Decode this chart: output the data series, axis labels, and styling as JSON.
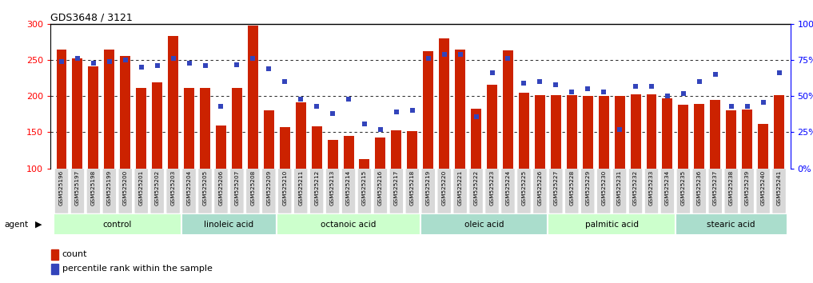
{
  "title": "GDS3648 / 3121",
  "samples": [
    "GSM525196",
    "GSM525197",
    "GSM525198",
    "GSM525199",
    "GSM525200",
    "GSM525201",
    "GSM525202",
    "GSM525203",
    "GSM525204",
    "GSM525205",
    "GSM525206",
    "GSM525207",
    "GSM525208",
    "GSM525209",
    "GSM525210",
    "GSM525211",
    "GSM525212",
    "GSM525213",
    "GSM525214",
    "GSM525215",
    "GSM525216",
    "GSM525217",
    "GSM525218",
    "GSM525219",
    "GSM525220",
    "GSM525221",
    "GSM525222",
    "GSM525223",
    "GSM525224",
    "GSM525225",
    "GSM525226",
    "GSM525227",
    "GSM525228",
    "GSM525229",
    "GSM525230",
    "GSM525231",
    "GSM525232",
    "GSM525233",
    "GSM525234",
    "GSM525235",
    "GSM525236",
    "GSM525237",
    "GSM525238",
    "GSM525239",
    "GSM525240",
    "GSM525241"
  ],
  "counts": [
    265,
    252,
    241,
    265,
    256,
    211,
    219,
    284,
    211,
    211,
    159,
    212,
    298,
    181,
    157,
    192,
    158,
    140,
    145,
    113,
    143,
    153,
    152,
    262,
    280,
    265,
    183,
    216,
    263,
    205,
    201,
    202,
    201,
    200,
    200,
    200,
    203,
    203,
    197,
    188,
    189,
    195,
    180,
    182,
    162,
    201
  ],
  "percentiles": [
    74,
    76,
    73,
    74,
    75,
    70,
    71,
    76,
    73,
    71,
    43,
    72,
    76,
    69,
    60,
    48,
    43,
    38,
    48,
    31,
    27,
    39,
    40,
    76,
    79,
    79,
    36,
    66,
    76,
    59,
    60,
    58,
    53,
    55,
    53,
    27,
    57,
    57,
    50,
    52,
    60,
    65,
    43,
    43,
    46,
    66
  ],
  "groups": [
    {
      "label": "control",
      "start": 0,
      "end": 8
    },
    {
      "label": "linoleic acid",
      "start": 8,
      "end": 14
    },
    {
      "label": "octanoic acid",
      "start": 14,
      "end": 23
    },
    {
      "label": "oleic acid",
      "start": 23,
      "end": 31
    },
    {
      "label": "palmitic acid",
      "start": 31,
      "end": 39
    },
    {
      "label": "stearic acid",
      "start": 39,
      "end": 46
    }
  ],
  "bar_color": "#cc2200",
  "dot_color": "#3344bb",
  "ylim_left": [
    100,
    300
  ],
  "ylim_right": [
    0,
    100
  ],
  "yticks_left": [
    100,
    150,
    200,
    250,
    300
  ],
  "yticks_right": [
    0,
    25,
    50,
    75,
    100
  ],
  "yticklabels_right": [
    "0%",
    "25%",
    "50%",
    "75%",
    "100%"
  ],
  "group_colors_alt": [
    "#ccffcc",
    "#aaddcc",
    "#ccffcc",
    "#aaddcc",
    "#ccffcc",
    "#aaddcc"
  ]
}
